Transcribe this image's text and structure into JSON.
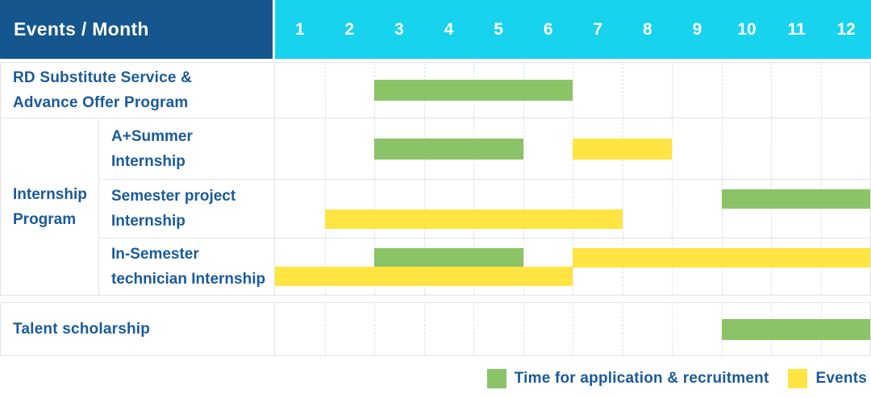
{
  "header": {
    "title": "Events / Month",
    "months": [
      "1",
      "2",
      "3",
      "4",
      "5",
      "6",
      "7",
      "8",
      "9",
      "10",
      "11",
      "12"
    ]
  },
  "legend": {
    "application_label": "Time for application & recruitment",
    "events_label": "Events"
  },
  "colors": {
    "header_blue": "#15568E",
    "month_header_cyan": "#17D3EE",
    "application_green": "#8AC466",
    "event_yellow": "#FFE442",
    "label_blue": "#1A5A9A",
    "grid_line": "#E2E2E2"
  },
  "chart_data": {
    "type": "gantt",
    "title": "Events / Month",
    "x_axis": {
      "unit": "month",
      "ticks": [
        1,
        2,
        3,
        4,
        5,
        6,
        7,
        8,
        9,
        10,
        11,
        12
      ],
      "range": [
        1,
        12
      ]
    },
    "grid": "dashed-vertical-month-lines",
    "legend_position": "bottom-right",
    "legend": [
      {
        "key": "application",
        "label": "Time for application & recruitment",
        "color": "#8AC466"
      },
      {
        "key": "event",
        "label": "Events",
        "color": "#FFE442"
      }
    ],
    "group_label_lines": [
      "Internship",
      "Program"
    ],
    "rows": [
      {
        "id": "rd-substitute",
        "label": "RD Substitute Service & Advance Offer Program",
        "label_lines": [
          "RD Substitute Service &",
          "Advance Offer Program"
        ],
        "group": null,
        "bars": [
          {
            "type": "application",
            "start": 3,
            "end": 6,
            "lane": "center"
          }
        ]
      },
      {
        "id": "a-summer-internship",
        "label": "A+Summer Internship",
        "label_lines": [
          "A+Summer",
          "Internship"
        ],
        "group": "Internship Program",
        "bars": [
          {
            "type": "application",
            "start": 3,
            "end": 5,
            "lane": "center"
          },
          {
            "type": "event",
            "start": 7,
            "end": 8,
            "lane": "center"
          }
        ]
      },
      {
        "id": "semester-project-internship",
        "label": "Semester project Internship",
        "label_lines": [
          "Semester project",
          "Internship"
        ],
        "group": "Internship Program",
        "bars": [
          {
            "type": "application",
            "start": 10,
            "end": 12,
            "lane": "top"
          },
          {
            "type": "event",
            "start": 2,
            "end": 7,
            "lane": "bottom"
          }
        ]
      },
      {
        "id": "in-semester-technician-internship",
        "label": "In-Semester technician Internship",
        "label_lines": [
          "In-Semester",
          "technician Internship"
        ],
        "group": "Internship Program",
        "bars": [
          {
            "type": "application",
            "start": 3,
            "end": 5,
            "lane": "top"
          },
          {
            "type": "event",
            "start": 7,
            "end": 12,
            "lane": "top"
          },
          {
            "type": "event",
            "start": 1,
            "end": 6,
            "lane": "bottom"
          }
        ]
      },
      {
        "id": "talent-scholarship",
        "label": "Talent scholarship",
        "label_lines": [
          "Talent scholarship"
        ],
        "group": null,
        "bars": [
          {
            "type": "application",
            "start": 10,
            "end": 12,
            "lane": "center"
          }
        ]
      }
    ]
  }
}
